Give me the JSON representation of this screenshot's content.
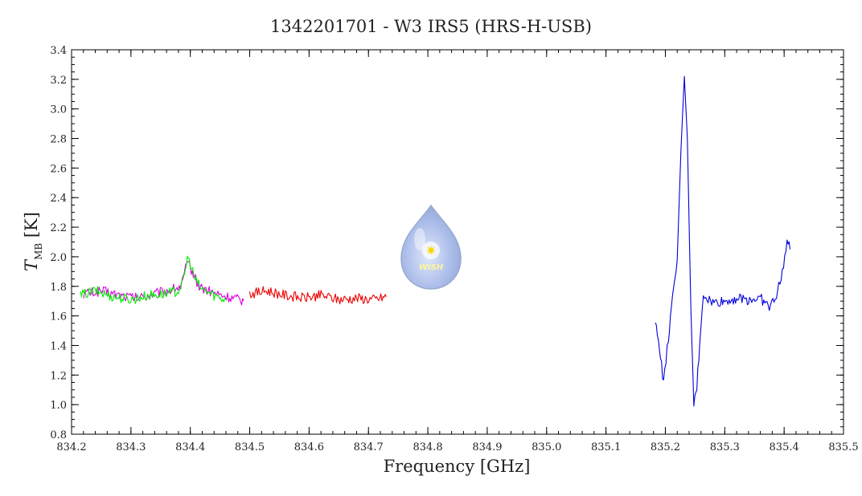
{
  "chart_data": {
    "type": "line",
    "title": "1342201701 - W3 IRS5 (HRS-H-USB)",
    "xlabel": "Frequency [GHz]",
    "ylabel_main": "T",
    "ylabel_sub": "MB",
    "ylabel_unit": " [K]",
    "xlim": [
      834.2,
      835.5
    ],
    "ylim": [
      0.8,
      3.4
    ],
    "x_ticks": [
      834.2,
      834.3,
      834.4,
      834.5,
      834.6,
      834.7,
      834.8,
      834.9,
      835.0,
      835.1,
      835.2,
      835.3,
      835.4,
      835.5
    ],
    "x_tick_labels": [
      "834.2",
      "834.3",
      "834.4",
      "834.5",
      "834.6",
      "834.7",
      "834.8",
      "834.9",
      "835.0",
      "835.1",
      "835.2",
      "835.3",
      "835.4",
      "835.5"
    ],
    "y_ticks": [
      0.8,
      1.0,
      1.2,
      1.4,
      1.6,
      1.8,
      2.0,
      2.2,
      2.4,
      2.6,
      2.8,
      3.0,
      3.2,
      3.4
    ],
    "y_tick_labels": [
      "0.8",
      "1.0",
      "1.2",
      "1.4",
      "1.6",
      "1.8",
      "2.0",
      "2.2",
      "2.4",
      "2.6",
      "2.8",
      "3.0",
      "3.2",
      "3.4"
    ],
    "grid": false,
    "legend": "none",
    "series": [
      {
        "color": "#dd00dd",
        "x": [
          834.22,
          834.25,
          834.28,
          834.31,
          834.34,
          834.37,
          834.385,
          834.392,
          834.398,
          834.405,
          834.415,
          834.43,
          834.45,
          834.47,
          834.49
        ],
        "y": [
          1.75,
          1.77,
          1.74,
          1.72,
          1.75,
          1.78,
          1.8,
          1.92,
          1.95,
          1.88,
          1.8,
          1.77,
          1.74,
          1.72,
          1.7
        ]
      },
      {
        "color": "#00ee00",
        "x": [
          834.215,
          834.24,
          834.27,
          834.3,
          834.33,
          834.36,
          834.38,
          834.39,
          834.395,
          834.4,
          834.41,
          834.42,
          834.44,
          834.46
        ],
        "y": [
          1.74,
          1.77,
          1.73,
          1.71,
          1.74,
          1.75,
          1.77,
          1.86,
          2.0,
          1.95,
          1.83,
          1.78,
          1.74,
          1.71
        ]
      },
      {
        "color": "#ee0000",
        "x": [
          834.5,
          834.53,
          834.56,
          834.59,
          834.62,
          834.65,
          834.68,
          834.71,
          834.73
        ],
        "y": [
          1.75,
          1.77,
          1.74,
          1.72,
          1.74,
          1.71,
          1.72,
          1.71,
          1.73
        ]
      },
      {
        "color": "#0000dd",
        "x": [
          835.183,
          835.19,
          835.197,
          835.205,
          835.212,
          835.22,
          835.226,
          835.232,
          835.237,
          835.243,
          835.248,
          835.253,
          835.258,
          835.264,
          835.27,
          835.28,
          835.3,
          835.32,
          835.34,
          835.36,
          835.375,
          835.385,
          835.395,
          835.405,
          835.41
        ],
        "y": [
          1.55,
          1.4,
          1.14,
          1.45,
          1.7,
          1.98,
          2.7,
          3.22,
          2.8,
          1.65,
          0.99,
          1.12,
          1.42,
          1.75,
          1.72,
          1.69,
          1.7,
          1.72,
          1.71,
          1.72,
          1.66,
          1.72,
          1.85,
          2.1,
          2.05
        ]
      }
    ],
    "logo": {
      "text": "WISH",
      "star_symbol": "✷"
    }
  }
}
